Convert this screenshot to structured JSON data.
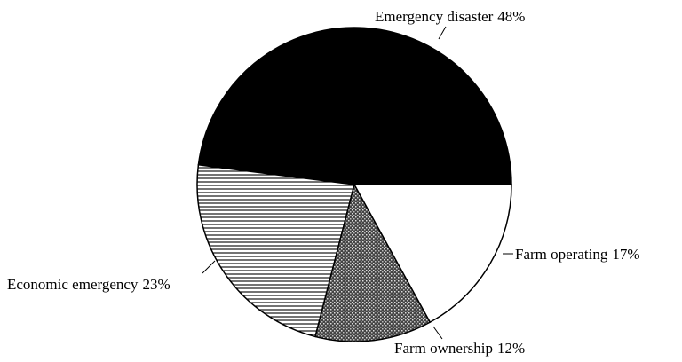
{
  "chart_data": {
    "type": "pie",
    "categories": [
      "Emergency disaster",
      "Economic emergency",
      "Farm ownership",
      "Farm operating"
    ],
    "values": [
      48,
      23,
      12,
      17
    ],
    "value_labels": [
      "48%",
      "23%",
      "12%",
      "17%"
    ]
  }
}
